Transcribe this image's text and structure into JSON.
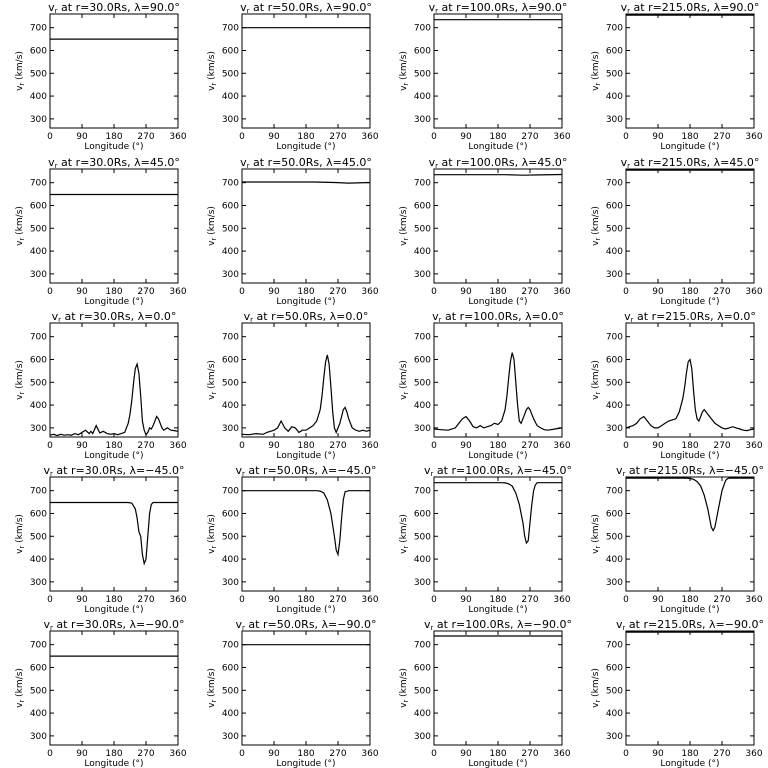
{
  "figure": {
    "rows": 5,
    "cols": 4
  },
  "chart_data": [
    {
      "type": "line",
      "title": "v_r at r=30.0Rs, λ=90.0°",
      "title_main": "v",
      "title_sub": "r",
      "title_rest": " at r=30.0Rs, λ=90.0°",
      "xlabel": "Longitude (°)",
      "ylabel": "v_r (km/s)",
      "ylabel_main": "v",
      "ylabel_sub": "r",
      "ylabel_rest": " (km/s)",
      "xlim": [
        0,
        360
      ],
      "ylim": [
        260,
        760
      ],
      "xticks": [
        0,
        90,
        180,
        270,
        360
      ],
      "yticks": [
        300,
        400,
        500,
        600,
        700
      ],
      "x": [
        0,
        360
      ],
      "y": [
        650,
        650
      ]
    },
    {
      "type": "line",
      "title": "v_r at r=50.0Rs, λ=90.0°",
      "title_main": "v",
      "title_sub": "r",
      "title_rest": " at r=50.0Rs, λ=90.0°",
      "xlabel": "Longitude (°)",
      "ylabel": "v_r (km/s)",
      "ylabel_main": "v",
      "ylabel_sub": "r",
      "ylabel_rest": " (km/s)",
      "xlim": [
        0,
        360
      ],
      "ylim": [
        260,
        760
      ],
      "xticks": [
        0,
        90,
        180,
        270,
        360
      ],
      "yticks": [
        300,
        400,
        500,
        600,
        700
      ],
      "x": [
        0,
        360
      ],
      "y": [
        700,
        700
      ]
    },
    {
      "type": "line",
      "title": "v_r at r=100.0Rs, λ=90.0°",
      "title_main": "v",
      "title_sub": "r",
      "title_rest": " at r=100.0Rs, λ=90.0°",
      "xlabel": "Longitude (°)",
      "ylabel": "v_r (km/s)",
      "ylabel_main": "v",
      "ylabel_sub": "r",
      "ylabel_rest": " (km/s)",
      "xlim": [
        0,
        360
      ],
      "ylim": [
        260,
        760
      ],
      "xticks": [
        0,
        90,
        180,
        270,
        360
      ],
      "yticks": [
        300,
        400,
        500,
        600,
        700
      ],
      "x": [
        0,
        360
      ],
      "y": [
        735,
        735
      ]
    },
    {
      "type": "line",
      "title": "v_r at r=215.0Rs, λ=90.0°",
      "title_main": "v",
      "title_sub": "r",
      "title_rest": " at r=215.0Rs, λ=90.0°",
      "xlabel": "Longitude (°)",
      "ylabel": "v_r (km/s)",
      "ylabel_main": "v",
      "ylabel_sub": "r",
      "ylabel_rest": " (km/s)",
      "xlim": [
        0,
        360
      ],
      "ylim": [
        260,
        760
      ],
      "xticks": [
        0,
        90,
        180,
        270,
        360
      ],
      "yticks": [
        300,
        400,
        500,
        600,
        700
      ],
      "x": [
        0,
        360
      ],
      "y": [
        755,
        755
      ]
    },
    {
      "type": "line",
      "title": "v_r at r=30.0Rs, λ=45.0°",
      "title_main": "v",
      "title_sub": "r",
      "title_rest": " at r=30.0Rs, λ=45.0°",
      "xlabel": "Longitude (°)",
      "ylabel": "v_r (km/s)",
      "ylabel_main": "v",
      "ylabel_sub": "r",
      "ylabel_rest": " (km/s)",
      "xlim": [
        0,
        360
      ],
      "ylim": [
        260,
        760
      ],
      "xticks": [
        0,
        90,
        180,
        270,
        360
      ],
      "yticks": [
        300,
        400,
        500,
        600,
        700
      ],
      "x": [
        0,
        360
      ],
      "y": [
        648,
        648
      ]
    },
    {
      "type": "line",
      "title": "v_r at r=50.0Rs, λ=45.0°",
      "title_main": "v",
      "title_sub": "r",
      "title_rest": " at r=50.0Rs, λ=45.0°",
      "xlabel": "Longitude (°)",
      "ylabel": "v_r (km/s)",
      "ylabel_main": "v",
      "ylabel_sub": "r",
      "ylabel_rest": " (km/s)",
      "xlim": [
        0,
        360
      ],
      "ylim": [
        260,
        760
      ],
      "xticks": [
        0,
        90,
        180,
        270,
        360
      ],
      "yticks": [
        300,
        400,
        500,
        600,
        700
      ],
      "x": [
        0,
        200,
        260,
        300,
        360
      ],
      "y": [
        703,
        703,
        701,
        698,
        701
      ]
    },
    {
      "type": "line",
      "title": "v_r at r=100.0Rs, λ=45.0°",
      "title_main": "v",
      "title_sub": "r",
      "title_rest": " at r=100.0Rs, λ=45.0°",
      "xlabel": "Longitude (°)",
      "ylabel": "v_r (km/s)",
      "ylabel_main": "v",
      "ylabel_sub": "r",
      "ylabel_rest": " (km/s)",
      "xlim": [
        0,
        360
      ],
      "ylim": [
        260,
        760
      ],
      "xticks": [
        0,
        90,
        180,
        270,
        360
      ],
      "yticks": [
        300,
        400,
        500,
        600,
        700
      ],
      "x": [
        0,
        200,
        250,
        300,
        360
      ],
      "y": [
        735,
        735,
        733,
        734,
        736
      ]
    },
    {
      "type": "line",
      "title": "v_r at r=215.0Rs, λ=45.0°",
      "title_main": "v",
      "title_sub": "r",
      "title_rest": " at r=215.0Rs, λ=45.0°",
      "xlabel": "Longitude (°)",
      "ylabel": "v_r (km/s)",
      "ylabel_main": "v",
      "ylabel_sub": "r",
      "ylabel_rest": " (km/s)",
      "xlim": [
        0,
        360
      ],
      "ylim": [
        260,
        760
      ],
      "xticks": [
        0,
        90,
        180,
        270,
        360
      ],
      "yticks": [
        300,
        400,
        500,
        600,
        700
      ],
      "x": [
        0,
        360
      ],
      "y": [
        755,
        755
      ]
    },
    {
      "type": "line",
      "title": "v_r at r=30.0Rs, λ=0.0°",
      "title_main": "v",
      "title_sub": "r",
      "title_rest": " at r=30.0Rs, λ=0.0°",
      "xlabel": "Longitude (°)",
      "ylabel": "v_r (km/s)",
      "ylabel_main": "v",
      "ylabel_sub": "r",
      "ylabel_rest": " (km/s)",
      "xlim": [
        0,
        360
      ],
      "ylim": [
        260,
        760
      ],
      "xticks": [
        0,
        90,
        180,
        270,
        360
      ],
      "yticks": [
        300,
        400,
        500,
        600,
        700
      ],
      "x": [
        0,
        10,
        20,
        30,
        40,
        50,
        60,
        70,
        80,
        90,
        100,
        110,
        115,
        120,
        130,
        140,
        150,
        160,
        170,
        180,
        190,
        200,
        210,
        215,
        220,
        225,
        230,
        235,
        240,
        245,
        250,
        255,
        260,
        265,
        270,
        275,
        280,
        285,
        290,
        295,
        300,
        305,
        310,
        315,
        320,
        330,
        340,
        350,
        360
      ],
      "y": [
        268,
        272,
        266,
        272,
        268,
        270,
        268,
        275,
        270,
        280,
        290,
        275,
        285,
        275,
        310,
        278,
        285,
        276,
        272,
        275,
        270,
        275,
        280,
        300,
        320,
        360,
        420,
        500,
        560,
        580,
        540,
        440,
        330,
        290,
        270,
        280,
        300,
        295,
        310,
        330,
        350,
        340,
        320,
        300,
        290,
        300,
        290,
        288,
        285
      ]
    },
    {
      "type": "line",
      "title": "v_r at r=50.0Rs, λ=0.0°",
      "title_main": "v",
      "title_sub": "r",
      "title_rest": " at r=50.0Rs, λ=0.0°",
      "xlabel": "Longitude (°)",
      "ylabel": "v_r (km/s)",
      "ylabel_main": "v",
      "ylabel_sub": "r",
      "ylabel_rest": " (km/s)",
      "xlim": [
        0,
        360
      ],
      "ylim": [
        260,
        760
      ],
      "xticks": [
        0,
        90,
        180,
        270,
        360
      ],
      "yticks": [
        300,
        400,
        500,
        600,
        700
      ],
      "x": [
        0,
        20,
        40,
        60,
        70,
        80,
        90,
        100,
        110,
        120,
        130,
        140,
        150,
        160,
        170,
        180,
        190,
        200,
        210,
        220,
        225,
        230,
        235,
        240,
        245,
        250,
        255,
        260,
        265,
        270,
        275,
        280,
        285,
        290,
        295,
        300,
        310,
        320,
        330,
        340,
        350,
        360
      ],
      "y": [
        272,
        270,
        275,
        272,
        280,
        285,
        290,
        300,
        330,
        300,
        285,
        305,
        300,
        280,
        290,
        290,
        300,
        310,
        330,
        380,
        440,
        520,
        590,
        620,
        580,
        480,
        370,
        300,
        280,
        300,
        320,
        350,
        380,
        390,
        370,
        340,
        300,
        290,
        285,
        290,
        285,
        290
      ]
    },
    {
      "type": "line",
      "title": "v_r at r=100.0Rs, λ=0.0°",
      "title_main": "v",
      "title_sub": "r",
      "title_rest": " at r=100.0Rs, λ=0.0°",
      "xlabel": "Longitude (°)",
      "ylabel": "v_r (km/s)",
      "ylabel_main": "v",
      "ylabel_sub": "r",
      "ylabel_rest": " (km/s)",
      "xlim": [
        0,
        360
      ],
      "ylim": [
        260,
        760
      ],
      "xticks": [
        0,
        90,
        180,
        270,
        360
      ],
      "yticks": [
        300,
        400,
        500,
        600,
        700
      ],
      "x": [
        0,
        20,
        40,
        60,
        70,
        80,
        90,
        100,
        110,
        120,
        130,
        140,
        150,
        160,
        170,
        180,
        190,
        200,
        205,
        210,
        215,
        220,
        225,
        230,
        235,
        240,
        245,
        250,
        255,
        260,
        265,
        270,
        275,
        280,
        290,
        300,
        310,
        320,
        340,
        360
      ],
      "y": [
        295,
        292,
        290,
        300,
        320,
        340,
        350,
        330,
        305,
        300,
        310,
        300,
        305,
        310,
        320,
        315,
        330,
        380,
        440,
        520,
        590,
        630,
        600,
        500,
        400,
        330,
        320,
        340,
        360,
        380,
        390,
        380,
        360,
        340,
        310,
        300,
        292,
        290,
        295,
        300
      ]
    },
    {
      "type": "line",
      "title": "v_r at r=215.0Rs, λ=0.0°",
      "title_main": "v",
      "title_sub": "r",
      "title_rest": " at r=215.0Rs, λ=0.0°",
      "xlabel": "Longitude (°)",
      "ylabel": "v_r (km/s)",
      "ylabel_main": "v",
      "ylabel_sub": "r",
      "ylabel_rest": " (km/s)",
      "xlim": [
        0,
        360
      ],
      "ylim": [
        260,
        760
      ],
      "xticks": [
        0,
        90,
        180,
        270,
        360
      ],
      "yticks": [
        300,
        400,
        500,
        600,
        700
      ],
      "x": [
        0,
        10,
        20,
        30,
        40,
        50,
        60,
        70,
        80,
        90,
        100,
        110,
        120,
        130,
        140,
        150,
        160,
        165,
        170,
        175,
        180,
        185,
        190,
        195,
        200,
        205,
        210,
        215,
        220,
        225,
        230,
        240,
        250,
        260,
        270,
        280,
        290,
        300,
        310,
        320,
        330,
        340,
        350,
        360
      ],
      "y": [
        300,
        305,
        310,
        320,
        340,
        350,
        330,
        310,
        300,
        300,
        310,
        320,
        330,
        335,
        340,
        370,
        430,
        480,
        540,
        590,
        600,
        560,
        460,
        380,
        340,
        330,
        350,
        370,
        380,
        370,
        360,
        340,
        320,
        310,
        300,
        295,
        300,
        305,
        300,
        295,
        290,
        288,
        292,
        295
      ]
    },
    {
      "type": "line",
      "title": "v_r at r=30.0Rs, λ=-45.0°",
      "title_main": "v",
      "title_sub": "r",
      "title_rest": " at r=30.0Rs, λ=−45.0°",
      "xlabel": "Longitude (°)",
      "ylabel": "v_r (km/s)",
      "ylabel_main": "v",
      "ylabel_sub": "r",
      "ylabel_rest": " (km/s)",
      "xlim": [
        0,
        360
      ],
      "ylim": [
        260,
        760
      ],
      "xticks": [
        0,
        90,
        180,
        270,
        360
      ],
      "yticks": [
        300,
        400,
        500,
        600,
        700
      ],
      "x": [
        0,
        220,
        230,
        240,
        245,
        250,
        255,
        260,
        265,
        270,
        275,
        280,
        285,
        290,
        300,
        310,
        360
      ],
      "y": [
        648,
        648,
        645,
        620,
        580,
        520,
        500,
        420,
        380,
        400,
        500,
        600,
        640,
        648,
        648,
        648,
        648
      ]
    },
    {
      "type": "line",
      "title": "v_r at r=50.0Rs, λ=-45.0°",
      "title_main": "v",
      "title_sub": "r",
      "title_rest": " at r=50.0Rs, λ=−45.0°",
      "xlabel": "Longitude (°)",
      "ylabel": "v_r (km/s)",
      "ylabel_main": "v",
      "ylabel_sub": "r",
      "ylabel_rest": " (km/s)",
      "xlim": [
        0,
        360
      ],
      "ylim": [
        260,
        760
      ],
      "xticks": [
        0,
        90,
        180,
        270,
        360
      ],
      "yticks": [
        300,
        400,
        500,
        600,
        700
      ],
      "x": [
        0,
        210,
        220,
        230,
        240,
        250,
        260,
        265,
        270,
        275,
        280,
        285,
        290,
        300,
        310,
        360
      ],
      "y": [
        700,
        700,
        698,
        690,
        660,
        600,
        500,
        440,
        420,
        480,
        580,
        660,
        695,
        700,
        700,
        700
      ]
    },
    {
      "type": "line",
      "title": "v_r at r=100.0Rs, λ=-45.0°",
      "title_main": "v",
      "title_sub": "r",
      "title_rest": " at r=100.0Rs, λ=−45.0°",
      "xlabel": "Longitude (°)",
      "ylabel": "v_r (km/s)",
      "ylabel_main": "v",
      "ylabel_sub": "r",
      "ylabel_rest": " (km/s)",
      "xlim": [
        0,
        360
      ],
      "ylim": [
        260,
        760
      ],
      "xticks": [
        0,
        90,
        180,
        270,
        360
      ],
      "yticks": [
        300,
        400,
        500,
        600,
        700
      ],
      "x": [
        0,
        190,
        200,
        210,
        220,
        230,
        240,
        250,
        255,
        260,
        265,
        270,
        275,
        280,
        285,
        290,
        300,
        310,
        360
      ],
      "y": [
        735,
        735,
        734,
        730,
        720,
        690,
        640,
        560,
        500,
        470,
        480,
        560,
        640,
        700,
        725,
        735,
        735,
        735,
        735
      ]
    },
    {
      "type": "line",
      "title": "v_r at r=215.0Rs, λ=-45.0°",
      "title_main": "v",
      "title_sub": "r",
      "title_rest": " at r=215.0Rs, λ=−45.0°",
      "xlabel": "Longitude (°)",
      "ylabel": "v_r (km/s)",
      "ylabel_main": "v",
      "ylabel_sub": "r",
      "ylabel_rest": " (km/s)",
      "xlim": [
        0,
        360
      ],
      "ylim": [
        260,
        760
      ],
      "xticks": [
        0,
        90,
        180,
        270,
        360
      ],
      "yticks": [
        300,
        400,
        500,
        600,
        700
      ],
      "x": [
        0,
        170,
        180,
        190,
        200,
        210,
        220,
        230,
        240,
        245,
        250,
        260,
        270,
        280,
        285,
        290,
        300,
        360
      ],
      "y": [
        755,
        755,
        754,
        750,
        740,
        720,
        680,
        620,
        540,
        525,
        540,
        620,
        700,
        745,
        752,
        755,
        755,
        755
      ]
    },
    {
      "type": "line",
      "title": "v_r at r=30.0Rs, λ=-90.0°",
      "title_main": "v",
      "title_sub": "r",
      "title_rest": " at r=30.0Rs, λ=−90.0°",
      "xlabel": "Longitude (°)",
      "ylabel": "v_r (km/s)",
      "ylabel_main": "v",
      "ylabel_sub": "r",
      "ylabel_rest": " (km/s)",
      "xlim": [
        0,
        360
      ],
      "ylim": [
        260,
        760
      ],
      "xticks": [
        0,
        90,
        180,
        270,
        360
      ],
      "yticks": [
        300,
        400,
        500,
        600,
        700
      ],
      "x": [
        0,
        360
      ],
      "y": [
        650,
        650
      ]
    },
    {
      "type": "line",
      "title": "v_r at r=50.0Rs, λ=-90.0°",
      "title_main": "v",
      "title_sub": "r",
      "title_rest": " at r=50.0Rs, λ=−90.0°",
      "xlabel": "Longitude (°)",
      "ylabel": "v_r (km/s)",
      "ylabel_main": "v",
      "ylabel_sub": "r",
      "ylabel_rest": " (km/s)",
      "xlim": [
        0,
        360
      ],
      "ylim": [
        260,
        760
      ],
      "xticks": [
        0,
        90,
        180,
        270,
        360
      ],
      "yticks": [
        300,
        400,
        500,
        600,
        700
      ],
      "x": [
        0,
        360
      ],
      "y": [
        700,
        700
      ]
    },
    {
      "type": "line",
      "title": "v_r at r=100.0Rs, λ=-90.0°",
      "title_main": "v",
      "title_sub": "r",
      "title_rest": " at r=100.0Rs, λ=−90.0°",
      "xlabel": "Longitude (°)",
      "ylabel": "v_r (km/s)",
      "ylabel_main": "v",
      "ylabel_sub": "r",
      "ylabel_rest": " (km/s)",
      "xlim": [
        0,
        360
      ],
      "ylim": [
        260,
        760
      ],
      "xticks": [
        0,
        90,
        180,
        270,
        360
      ],
      "yticks": [
        300,
        400,
        500,
        600,
        700
      ],
      "x": [
        0,
        360
      ],
      "y": [
        738,
        738
      ]
    },
    {
      "type": "line",
      "title": "v_r at r=215.0Rs, λ=-90.0°",
      "title_main": "v",
      "title_sub": "r",
      "title_rest": " at r=215.0Rs, λ=−90.0°",
      "xlabel": "Longitude (°)",
      "ylabel": "v_r (km/s)",
      "ylabel_main": "v",
      "ylabel_sub": "r",
      "ylabel_rest": " (km/s)",
      "xlim": [
        0,
        360
      ],
      "ylim": [
        260,
        760
      ],
      "xticks": [
        0,
        90,
        180,
        270,
        360
      ],
      "yticks": [
        300,
        400,
        500,
        600,
        700
      ],
      "x": [
        0,
        360
      ],
      "y": [
        755,
        755
      ]
    }
  ]
}
